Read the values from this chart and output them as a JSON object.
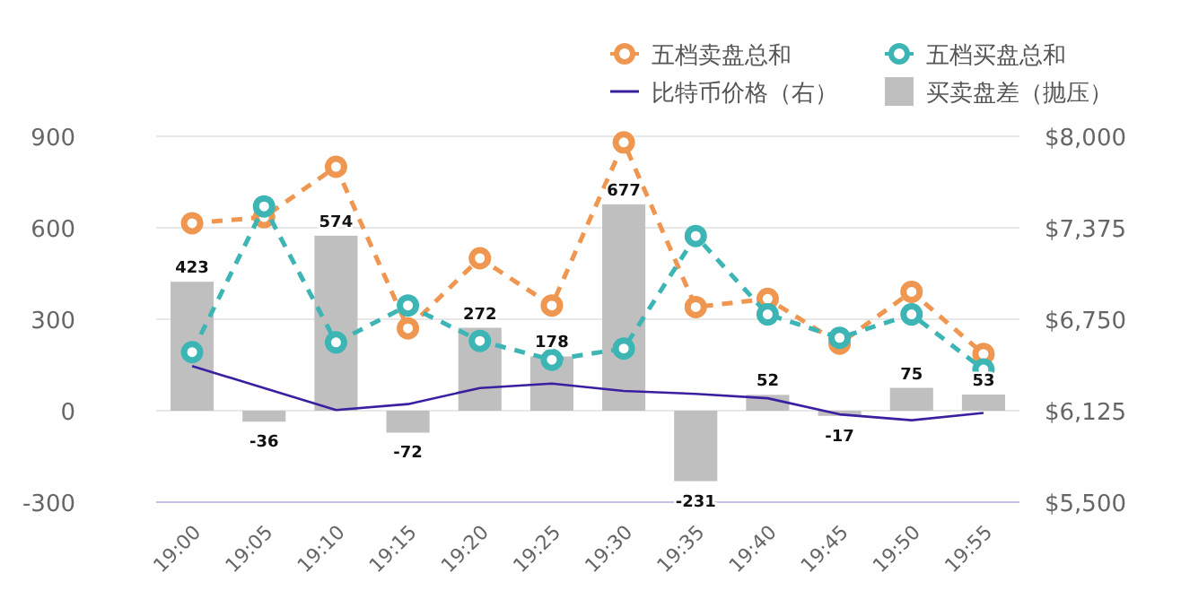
{
  "chart_data": {
    "type": "bar",
    "categories": [
      "19:00",
      "19:05",
      "19:10",
      "19:15",
      "19:20",
      "19:25",
      "19:30",
      "19:35",
      "19:40",
      "19:45",
      "19:50",
      "19:55"
    ],
    "legend": "top right",
    "grid": "y",
    "ylim": [
      -300,
      900
    ],
    "yticks": [
      -300,
      0,
      300,
      600,
      900
    ],
    "y2lim": [
      5500,
      8000
    ],
    "y2ticks": [
      {
        "value": 5500,
        "label": "$5,500"
      },
      {
        "value": 6125,
        "label": "$6,125"
      },
      {
        "value": 6750,
        "label": "$6,750"
      },
      {
        "value": 7375,
        "label": "$7,375"
      },
      {
        "value": 8000,
        "label": "$8,000"
      }
    ],
    "series": [
      {
        "name": "五档卖盘总和",
        "type": "line",
        "color": "#ef9650",
        "marker": "circle",
        "line_style": "dashed",
        "values": [
          615,
          635,
          800,
          270,
          500,
          345,
          880,
          340,
          367,
          220,
          390,
          186
        ]
      },
      {
        "name": "五档买盘总和",
        "type": "line",
        "color": "#3db5b5",
        "marker": "circle",
        "line_style": "dashed",
        "values": [
          192,
          670,
          224,
          345,
          229,
          167,
          204,
          573,
          316,
          239,
          316,
          135
        ]
      },
      {
        "name": "比特币价格（右）",
        "type": "line",
        "axis": "y2",
        "color": "#3a20a0",
        "line_style": "solid",
        "values": [
          6430,
          6280,
          6130,
          6170,
          6280,
          6310,
          6260,
          6240,
          6210,
          6100,
          6060,
          6110
        ]
      },
      {
        "name": "买卖盘差（抛压）",
        "color": "#bfbfbf",
        "values": [
          423,
          -36,
          574,
          -72,
          272,
          178,
          677,
          -231,
          52,
          -17,
          75,
          53
        ],
        "value_labels": [
          "423",
          "-36",
          "574",
          "-72",
          "272",
          "178",
          "677",
          "-231",
          "52",
          "-17",
          "75",
          "53"
        ]
      }
    ]
  }
}
